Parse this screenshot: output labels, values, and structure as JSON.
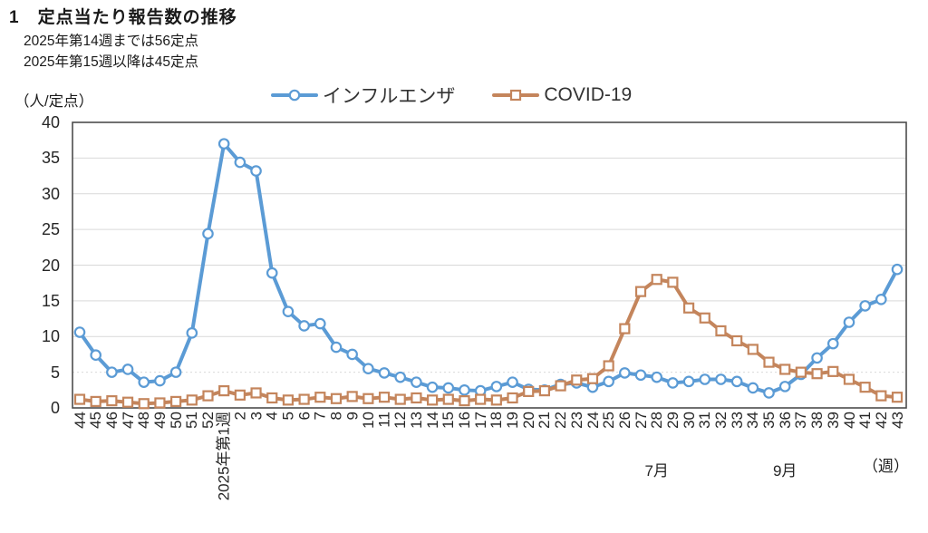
{
  "header": {
    "title": "1　定点当たり報告数の推移",
    "notes": [
      "2025年第14週までは56定点",
      "2025年第15週以降は45定点"
    ]
  },
  "chart_data": {
    "type": "line",
    "ylabel_unit": "（人/定点）",
    "xlabel_unit": "（週）",
    "ylim": [
      0,
      40
    ],
    "yticks": [
      0,
      5,
      10,
      15,
      20,
      25,
      30,
      35,
      40
    ],
    "grid": true,
    "legend_position": "top",
    "colors": {
      "grid": "#D9D9D9",
      "axis": "#4d4d4d"
    },
    "categories": [
      "44",
      "45",
      "46",
      "47",
      "48",
      "49",
      "50",
      "51",
      "52",
      "2025年第1週",
      "2",
      "3",
      "4",
      "5",
      "6",
      "7",
      "8",
      "9",
      "10",
      "11",
      "12",
      "13",
      "14",
      "15",
      "16",
      "17",
      "18",
      "19",
      "20",
      "21",
      "22",
      "23",
      "24",
      "25",
      "26",
      "27",
      "28",
      "29",
      "30",
      "31",
      "32",
      "33",
      "34",
      "35",
      "36",
      "37",
      "38",
      "39",
      "40",
      "41",
      "42",
      "43"
    ],
    "month_annotations": [
      {
        "label": "7月",
        "index": 36
      },
      {
        "label": "9月",
        "index": 44
      }
    ],
    "series": [
      {
        "id": "influenza",
        "name": "インフルエンザ",
        "color": "#5B9BD5",
        "marker": "circle",
        "values": [
          10.6,
          7.4,
          5.0,
          5.4,
          3.6,
          3.8,
          5.0,
          10.5,
          24.4,
          37.0,
          34.4,
          33.2,
          18.9,
          13.5,
          11.5,
          11.8,
          8.5,
          7.5,
          5.5,
          4.9,
          4.3,
          3.6,
          2.9,
          2.8,
          2.5,
          2.4,
          3.0,
          3.6,
          2.6,
          2.5,
          3.3,
          3.5,
          2.9,
          3.7,
          4.9,
          4.6,
          4.3,
          3.5,
          3.7,
          4.0,
          4.0,
          3.7,
          2.8,
          2.1,
          3.0,
          4.7,
          7.0,
          9.0,
          12.0,
          14.3,
          15.2,
          19.4
        ]
      },
      {
        "id": "covid-19",
        "name": "COVID-19",
        "color": "#C4855C",
        "marker": "square",
        "values": [
          1.2,
          0.9,
          1.0,
          0.8,
          0.6,
          0.7,
          0.9,
          1.1,
          1.7,
          2.4,
          1.8,
          2.1,
          1.4,
          1.1,
          1.2,
          1.5,
          1.3,
          1.6,
          1.3,
          1.5,
          1.2,
          1.4,
          1.1,
          1.2,
          1.0,
          1.2,
          1.1,
          1.4,
          2.3,
          2.4,
          3.1,
          3.9,
          4.1,
          5.9,
          11.1,
          16.3,
          18.0,
          17.6,
          14.0,
          12.6,
          10.8,
          9.4,
          8.2,
          6.4,
          5.4,
          5.0,
          4.8,
          5.1,
          4.0,
          2.9,
          1.7,
          1.5
        ]
      }
    ]
  }
}
